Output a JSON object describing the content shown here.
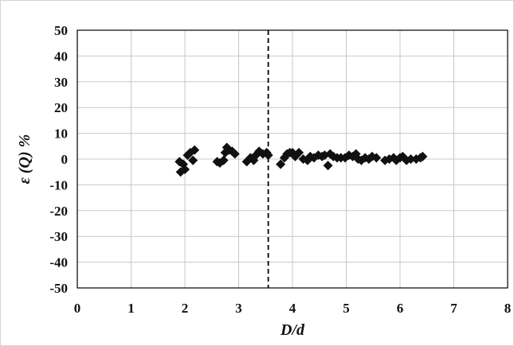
{
  "chart_data": {
    "type": "scatter",
    "title": "",
    "xlabel": "D/d",
    "ylabel": "ε (Q) %",
    "xlim": [
      0,
      8
    ],
    "ylim": [
      -50,
      50
    ],
    "x_ticks": [
      0,
      1,
      2,
      3,
      4,
      5,
      6,
      7,
      8
    ],
    "y_ticks": [
      -50,
      -40,
      -30,
      -20,
      -10,
      0,
      10,
      20,
      30,
      40,
      50
    ],
    "grid": true,
    "legend": "none",
    "marker": "diamond",
    "marker_color": "#111111",
    "reference_line": {
      "x": 3.55,
      "style": "dashed"
    },
    "series": [
      {
        "points": [
          [
            1.9,
            -1.0
          ],
          [
            1.92,
            -5.0
          ],
          [
            1.97,
            -2.0
          ],
          [
            2.0,
            -4.0
          ],
          [
            2.05,
            1.5
          ],
          [
            2.1,
            2.5
          ],
          [
            2.15,
            -0.5
          ],
          [
            2.18,
            3.5
          ],
          [
            2.6,
            -1.0
          ],
          [
            2.65,
            -1.5
          ],
          [
            2.72,
            -0.5
          ],
          [
            2.75,
            2.5
          ],
          [
            2.78,
            4.5
          ],
          [
            2.82,
            3.5
          ],
          [
            2.88,
            3.0
          ],
          [
            2.93,
            2.0
          ],
          [
            3.15,
            -1.0
          ],
          [
            3.22,
            0.5
          ],
          [
            3.28,
            -0.5
          ],
          [
            3.32,
            1.5
          ],
          [
            3.38,
            3.0
          ],
          [
            3.45,
            2.0
          ],
          [
            3.52,
            2.5
          ],
          [
            3.55,
            1.5
          ],
          [
            3.78,
            -2.0
          ],
          [
            3.85,
            0.5
          ],
          [
            3.9,
            2.0
          ],
          [
            3.95,
            2.5
          ],
          [
            4.0,
            2.5
          ],
          [
            4.05,
            1.0
          ],
          [
            4.12,
            2.5
          ],
          [
            4.2,
            0.0
          ],
          [
            4.28,
            -0.5
          ],
          [
            4.33,
            1.0
          ],
          [
            4.4,
            0.5
          ],
          [
            4.48,
            1.5
          ],
          [
            4.55,
            1.0
          ],
          [
            4.6,
            1.5
          ],
          [
            4.66,
            -2.5
          ],
          [
            4.7,
            2.0
          ],
          [
            4.76,
            1.0
          ],
          [
            4.83,
            0.5
          ],
          [
            4.9,
            0.5
          ],
          [
            4.98,
            0.5
          ],
          [
            5.05,
            1.5
          ],
          [
            5.12,
            1.0
          ],
          [
            5.18,
            2.0
          ],
          [
            5.22,
            0.0
          ],
          [
            5.28,
            -0.5
          ],
          [
            5.35,
            0.5
          ],
          [
            5.42,
            0.0
          ],
          [
            5.48,
            1.0
          ],
          [
            5.56,
            0.5
          ],
          [
            5.72,
            -0.5
          ],
          [
            5.8,
            0.0
          ],
          [
            5.88,
            0.5
          ],
          [
            5.93,
            -0.5
          ],
          [
            6.0,
            0.5
          ],
          [
            6.05,
            1.0
          ],
          [
            6.12,
            -0.5
          ],
          [
            6.2,
            0.0
          ],
          [
            6.3,
            0.0
          ],
          [
            6.38,
            0.5
          ],
          [
            6.42,
            1.0
          ]
        ]
      }
    ]
  }
}
